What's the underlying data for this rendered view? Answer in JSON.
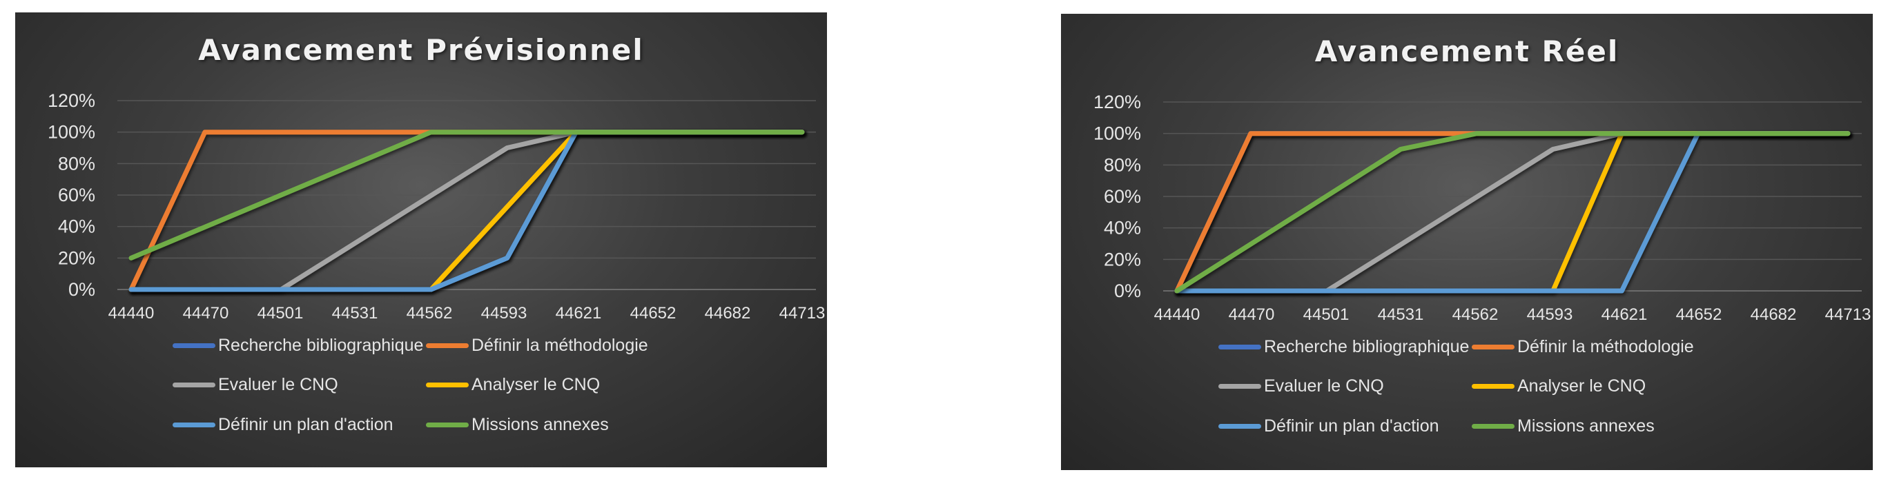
{
  "chart_data": [
    {
      "type": "line",
      "title": "Avancement Prévisionnel",
      "xlabel": "",
      "ylabel": "",
      "x_ticks": [
        44440,
        44470,
        44501,
        44531,
        44562,
        44593,
        44621,
        44652,
        44682,
        44713
      ],
      "y_ticks": [
        "0%",
        "20%",
        "40%",
        "60%",
        "80%",
        "100%",
        "120%"
      ],
      "xlim": [
        44440,
        44713
      ],
      "ylim": [
        0,
        1.2
      ],
      "grid": true,
      "legend_position": "bottom",
      "series": [
        {
          "name": "Recherche bibliographique",
          "color": "#4472c4",
          "points": [
            [
              44440,
              0
            ],
            [
              44562,
              0
            ],
            [
              44593,
              0.2
            ],
            [
              44621,
              1.0
            ],
            [
              44713,
              1.0
            ]
          ]
        },
        {
          "name": "Définir la méthodologie",
          "color": "#ed7d31",
          "points": [
            [
              44440,
              0
            ],
            [
              44470,
              1.0
            ],
            [
              44713,
              1.0
            ]
          ]
        },
        {
          "name": "Evaluer le CNQ",
          "color": "#a5a5a5",
          "points": [
            [
              44440,
              0
            ],
            [
              44501,
              0
            ],
            [
              44593,
              0.9
            ],
            [
              44621,
              1.0
            ],
            [
              44713,
              1.0
            ]
          ]
        },
        {
          "name": "Analyser le CNQ",
          "color": "#ffc000",
          "points": [
            [
              44440,
              0
            ],
            [
              44562,
              0
            ],
            [
              44621,
              1.0
            ],
            [
              44713,
              1.0
            ]
          ]
        },
        {
          "name": "Définir un plan d'action",
          "color": "#5b9bd5",
          "points": [
            [
              44440,
              0
            ],
            [
              44562,
              0
            ],
            [
              44593,
              0.2
            ],
            [
              44621,
              1.0
            ],
            [
              44713,
              1.0
            ]
          ]
        },
        {
          "name": "Missions annexes",
          "color": "#70ad47",
          "points": [
            [
              44440,
              0.2
            ],
            [
              44562,
              1.0
            ],
            [
              44713,
              1.0
            ]
          ]
        }
      ]
    },
    {
      "type": "line",
      "title": "Avancement Réel",
      "xlabel": "",
      "ylabel": "",
      "x_ticks": [
        44440,
        44470,
        44501,
        44531,
        44562,
        44593,
        44621,
        44652,
        44682,
        44713
      ],
      "y_ticks": [
        "0%",
        "20%",
        "40%",
        "60%",
        "80%",
        "100%",
        "120%"
      ],
      "xlim": [
        44440,
        44713
      ],
      "ylim": [
        0,
        1.2
      ],
      "grid": true,
      "legend_position": "bottom",
      "series": [
        {
          "name": "Recherche bibliographique",
          "color": "#4472c4",
          "points": [
            [
              44440,
              0
            ],
            [
              44470,
              1.0
            ],
            [
              44713,
              1.0
            ]
          ]
        },
        {
          "name": "Définir la méthodologie",
          "color": "#ed7d31",
          "points": [
            [
              44440,
              0
            ],
            [
              44470,
              1.0
            ],
            [
              44713,
              1.0
            ]
          ]
        },
        {
          "name": "Evaluer le CNQ",
          "color": "#a5a5a5",
          "points": [
            [
              44440,
              0
            ],
            [
              44501,
              0
            ],
            [
              44593,
              0.9
            ],
            [
              44621,
              1.0
            ],
            [
              44713,
              1.0
            ]
          ]
        },
        {
          "name": "Analyser le CNQ",
          "color": "#ffc000",
          "points": [
            [
              44440,
              0
            ],
            [
              44593,
              0
            ],
            [
              44621,
              1.0
            ],
            [
              44713,
              1.0
            ]
          ]
        },
        {
          "name": "Définir un plan d'action",
          "color": "#5b9bd5",
          "points": [
            [
              44440,
              0
            ],
            [
              44621,
              0
            ],
            [
              44652,
              1.0
            ],
            [
              44713,
              1.0
            ]
          ]
        },
        {
          "name": "Missions annexes",
          "color": "#70ad47",
          "points": [
            [
              44440,
              0
            ],
            [
              44531,
              0.9
            ],
            [
              44562,
              1.0
            ],
            [
              44713,
              1.0
            ]
          ]
        }
      ]
    }
  ]
}
